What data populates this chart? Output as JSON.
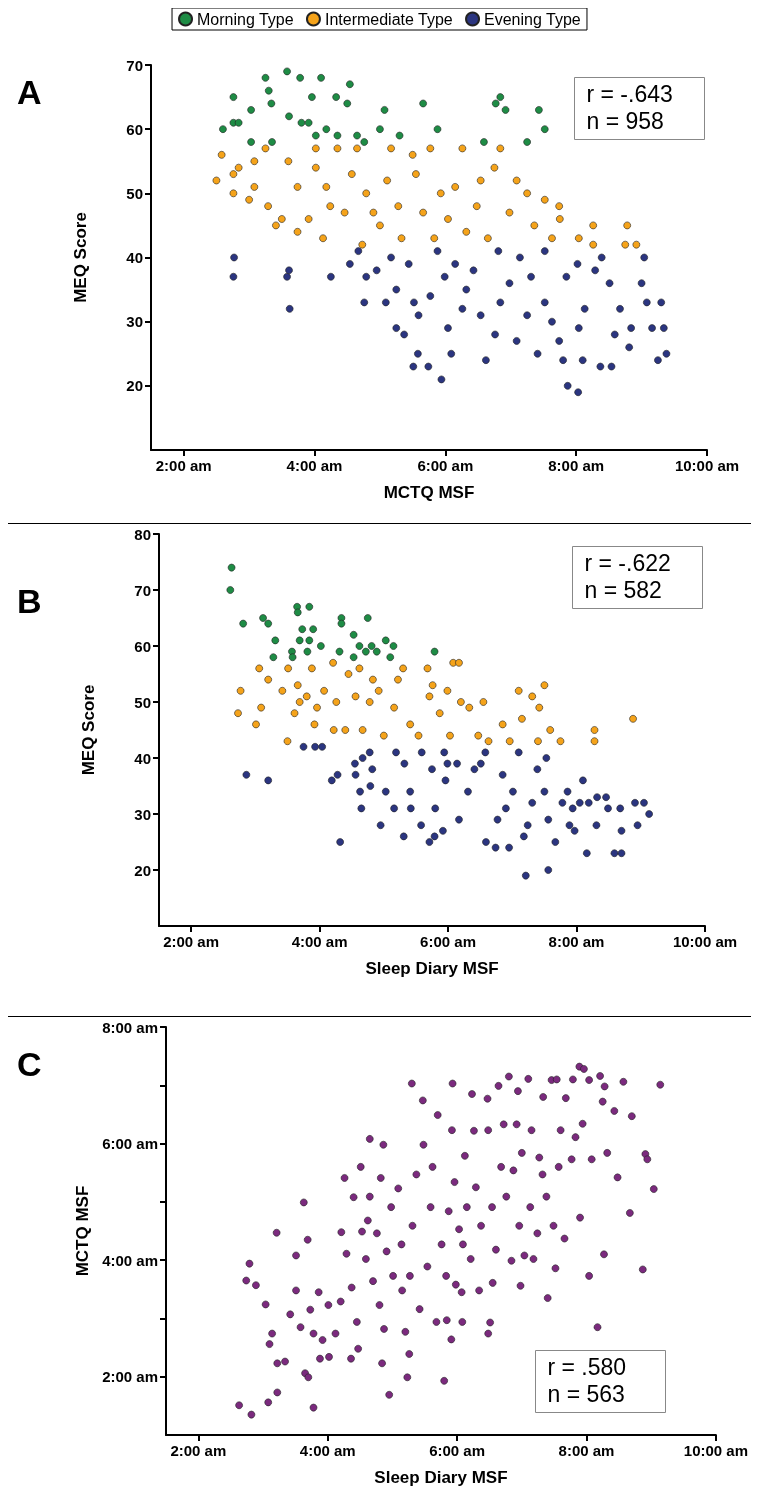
{
  "chart_data": [
    {
      "type": "scatter",
      "title": "A",
      "xlabel": "MCTQ MSF",
      "ylabel": "MEQ Score",
      "legend": "top",
      "marker": "circle",
      "annotations": [
        "r = -.643",
        "n = 958"
      ],
      "xlim": [
        1.5,
        10
      ],
      "xticks": [
        {
          "value": 2,
          "label": "2:00 am"
        },
        {
          "value": 4,
          "label": "4:00 am"
        },
        {
          "value": 6,
          "label": "6:00 am"
        },
        {
          "value": 8,
          "label": "8:00 am"
        },
        {
          "value": 10,
          "label": "10:00 am"
        }
      ],
      "ylim": [
        10,
        70
      ],
      "yticks": [
        20,
        30,
        40,
        50,
        60,
        70
      ],
      "series": [
        {
          "name": "Morning Type",
          "color": "#1e8c45",
          "x": [
            2.6,
            2.76,
            2.76,
            2.84,
            3.03,
            3.03,
            3.25,
            3.3,
            3.34,
            3.35,
            3.58,
            3.61,
            3.78,
            3.8,
            3.91,
            3.96,
            4.1,
            4.02,
            4.18,
            4.33,
            4.35,
            4.5,
            4.54,
            4.65,
            4.76,
            5.0,
            5.07,
            5.3,
            5.66,
            5.88,
            6.59,
            6.77,
            6.84,
            6.92,
            7.25,
            7.43,
            7.52
          ],
          "values": [
            60,
            65,
            61,
            61,
            63,
            58,
            68,
            66,
            64,
            58,
            69,
            62,
            68,
            61,
            61,
            65,
            68,
            59,
            60,
            65,
            59,
            64,
            67,
            59,
            58,
            60,
            63,
            59,
            64,
            60,
            58,
            64,
            65,
            63,
            58,
            63,
            60
          ]
        },
        {
          "name": "Intermediate Type",
          "color": "#f5a31a",
          "x": [
            2.5,
            2.58,
            2.76,
            2.76,
            2.84,
            3.0,
            3.08,
            3.08,
            3.25,
            3.29,
            3.41,
            3.5,
            3.6,
            3.74,
            3.74,
            3.91,
            4.02,
            4.02,
            4.13,
            4.18,
            4.24,
            4.35,
            4.46,
            4.57,
            4.65,
            4.73,
            4.79,
            4.9,
            5.0,
            5.11,
            5.17,
            5.28,
            5.33,
            5.5,
            5.55,
            5.66,
            5.77,
            5.83,
            5.93,
            6.04,
            6.15,
            6.26,
            6.32,
            6.48,
            6.54,
            6.65,
            6.75,
            6.84,
            6.98,
            7.09,
            7.25,
            7.36,
            7.52,
            7.63,
            7.74,
            7.75,
            8.04,
            8.26,
            8.26,
            8.78,
            8.75,
            8.92
          ],
          "values": [
            52,
            56,
            53,
            50,
            54,
            49,
            55,
            51,
            57,
            48,
            45,
            46,
            55,
            51,
            44,
            46,
            57,
            54,
            43,
            51,
            48,
            57,
            47,
            53,
            57,
            42,
            50,
            47,
            45,
            52,
            57,
            48,
            43,
            56,
            53,
            47,
            57,
            43,
            50,
            46,
            51,
            57,
            44,
            48,
            52,
            43,
            54,
            57,
            47,
            52,
            50,
            45,
            49,
            43,
            48,
            46,
            43,
            45,
            42,
            45,
            42,
            42
          ]
        },
        {
          "name": "Evening Type",
          "color": "#2b3580",
          "x": [
            2.77,
            2.76,
            3.58,
            3.61,
            3.62,
            4.25,
            4.54,
            4.67,
            4.76,
            4.79,
            4.95,
            5.09,
            5.17,
            5.25,
            5.25,
            5.37,
            5.44,
            5.52,
            5.58,
            5.51,
            5.59,
            5.74,
            5.77,
            5.88,
            5.94,
            5.99,
            6.04,
            6.09,
            6.15,
            6.26,
            6.32,
            6.43,
            6.54,
            6.62,
            6.76,
            6.81,
            6.84,
            6.98,
            7.09,
            7.14,
            7.25,
            7.31,
            7.41,
            7.52,
            7.52,
            7.63,
            7.74,
            7.8,
            7.85,
            7.87,
            8.02,
            8.03,
            8.04,
            8.1,
            8.13,
            8.29,
            8.37,
            8.39,
            8.54,
            8.51,
            8.59,
            8.67,
            8.84,
            8.81,
            9.0,
            9.04,
            9.08,
            9.25,
            9.3,
            9.38,
            9.34,
            9.16
          ],
          "values": [
            40,
            37,
            37,
            38,
            32,
            37,
            39,
            41,
            33,
            37,
            38,
            33,
            40,
            35,
            29,
            28,
            39,
            33,
            25,
            23,
            31,
            23,
            34,
            41,
            21,
            37,
            29,
            25,
            39,
            32,
            35,
            38,
            31,
            24,
            28,
            41,
            33,
            36,
            27,
            40,
            31,
            37,
            25,
            41,
            33,
            30,
            27,
            24,
            37,
            20,
            39,
            19,
            29,
            24,
            32,
            38,
            23,
            40,
            23,
            36,
            28,
            32,
            29,
            26,
            36,
            40,
            33,
            24,
            33,
            25,
            29,
            29
          ]
        }
      ]
    },
    {
      "type": "scatter",
      "title": "B",
      "xlabel": "Sleep Diary MSF",
      "ylabel": "MEQ Score",
      "marker": "circle",
      "annotations": [
        "r = -.622",
        "n = 582"
      ],
      "xlim": [
        1.5,
        10
      ],
      "xticks": [
        {
          "value": 2,
          "label": "2:00 am"
        },
        {
          "value": 4,
          "label": "4:00 am"
        },
        {
          "value": 6,
          "label": "6:00 am"
        },
        {
          "value": 8,
          "label": "8:00 am"
        },
        {
          "value": 10,
          "label": "10:00 am"
        }
      ],
      "ylim": [
        10,
        80
      ],
      "yticks": [
        20,
        30,
        40,
        50,
        60,
        70,
        80
      ],
      "series": [
        {
          "color": "#1e8c45",
          "x": [
            2.63,
            2.61,
            2.81,
            3.12,
            3.2,
            3.31,
            3.28,
            3.57,
            3.58,
            3.65,
            3.66,
            3.73,
            3.69,
            3.81,
            3.84,
            3.84,
            3.9,
            4.02,
            4.31,
            4.34,
            4.34,
            4.53,
            4.53,
            4.62,
            4.75,
            4.72,
            4.81,
            4.89,
            5.03,
            5.1,
            5.15,
            5.79
          ],
          "values": [
            74,
            70,
            64,
            65,
            64,
            61,
            58,
            59,
            58,
            67,
            66,
            63,
            61,
            59,
            67,
            61,
            63,
            60,
            59,
            65,
            64,
            62,
            58,
            60,
            65,
            59,
            60,
            59,
            61,
            58,
            60,
            59
          ]
        },
        {
          "color": "#f5a31a",
          "x": [
            2.73,
            2.77,
            3.01,
            3.06,
            3.09,
            3.2,
            3.42,
            3.5,
            3.51,
            3.61,
            3.66,
            3.69,
            3.8,
            3.88,
            3.92,
            3.96,
            4.07,
            4.21,
            4.22,
            4.26,
            4.4,
            4.45,
            4.56,
            4.62,
            4.67,
            4.78,
            4.83,
            4.92,
            5.0,
            5.16,
            5.22,
            5.3,
            5.41,
            5.54,
            5.68,
            5.71,
            5.76,
            5.87,
            5.99,
            6.03,
            6.08,
            6.17,
            6.2,
            6.33,
            6.47,
            6.55,
            6.63,
            6.85,
            6.96,
            7.1,
            7.15,
            7.31,
            7.4,
            7.42,
            7.5,
            7.59,
            7.75,
            8.28,
            8.28,
            8.88
          ],
          "values": [
            48,
            52,
            46,
            56,
            49,
            54,
            52,
            43,
            56,
            48,
            53,
            50,
            51,
            56,
            46,
            49,
            52,
            57,
            45,
            50,
            45,
            55,
            51,
            56,
            45,
            50,
            54,
            52,
            44,
            49,
            54,
            56,
            46,
            44,
            56,
            51,
            53,
            48,
            52,
            44,
            57,
            57,
            50,
            49,
            44,
            50,
            43,
            46,
            43,
            52,
            47,
            51,
            43,
            49,
            53,
            45,
            43,
            45,
            43,
            47
          ]
        },
        {
          "color": "#2b3580",
          "x": [
            2.86,
            3.2,
            3.75,
            3.93,
            4.04,
            4.19,
            4.28,
            4.32,
            4.55,
            4.56,
            4.63,
            4.65,
            4.67,
            4.78,
            4.79,
            4.82,
            4.95,
            5.03,
            5.16,
            5.19,
            5.31,
            5.32,
            5.41,
            5.42,
            5.58,
            5.59,
            5.71,
            5.75,
            5.79,
            5.8,
            5.92,
            5.94,
            5.96,
            5.99,
            6.14,
            6.17,
            6.31,
            6.41,
            6.51,
            6.58,
            6.59,
            6.74,
            6.77,
            6.85,
            6.9,
            6.95,
            7.01,
            7.1,
            7.18,
            7.21,
            7.24,
            7.31,
            7.39,
            7.5,
            7.53,
            7.56,
            7.56,
            7.67,
            7.78,
            7.86,
            7.89,
            7.94,
            7.97,
            8.05,
            8.1,
            8.16,
            8.19,
            8.31,
            8.32,
            8.46,
            8.49,
            8.59,
            8.7,
            8.68,
            8.7,
            8.91,
            8.95,
            9.05,
            9.13
          ],
          "values": [
            37,
            36,
            42,
            42,
            42,
            36,
            37,
            25,
            39,
            37,
            34,
            31,
            40,
            41,
            35,
            38,
            28,
            34,
            31,
            41,
            26,
            39,
            34,
            31,
            28,
            41,
            25,
            38,
            26,
            31,
            27,
            41,
            36,
            39,
            39,
            29,
            34,
            38,
            39,
            41,
            25,
            24,
            29,
            37,
            31,
            24,
            34,
            41,
            26,
            19,
            28,
            32,
            38,
            34,
            40,
            20,
            29,
            25,
            32,
            34,
            28,
            31,
            27,
            32,
            36,
            23,
            32,
            28,
            33,
            33,
            31,
            23,
            23,
            31,
            27,
            32,
            28,
            32,
            30
          ]
        }
      ]
    },
    {
      "type": "scatter",
      "title": "C",
      "xlabel": "Sleep Diary MSF",
      "ylabel": "MCTQ MSF",
      "marker": "circle",
      "annotations": [
        "r = .580",
        "n = 563"
      ],
      "xlim": [
        1.5,
        10
      ],
      "xticks": [
        {
          "value": 2,
          "label": "2:00 am"
        },
        {
          "value": 4,
          "label": "4:00 am"
        },
        {
          "value": 6,
          "label": "6:00 am"
        },
        {
          "value": 8,
          "label": "8:00 am"
        },
        {
          "value": 10,
          "label": "10:00 am"
        }
      ],
      "ylim": [
        1,
        8
      ],
      "yticks": [
        {
          "value": 2,
          "label": "2:00 am"
        },
        {
          "value": 3,
          "label": null
        },
        {
          "value": 4,
          "label": "4:00 am"
        },
        {
          "value": 5,
          "label": null
        },
        {
          "value": 6,
          "label": "6:00 am"
        },
        {
          "value": 7,
          "label": null
        },
        {
          "value": 8,
          "label": "8:00 am"
        }
      ],
      "series": [
        {
          "color": "#7b2a7e",
          "x": [
            2.63,
            2.82,
            3.08,
            3.22,
            3.78,
            2.74,
            2.79,
            2.89,
            3.04,
            3.14,
            3.1,
            3.22,
            3.21,
            3.34,
            3.42,
            3.51,
            3.51,
            3.58,
            3.63,
            3.65,
            3.7,
            3.69,
            3.73,
            3.78,
            3.86,
            3.88,
            3.92,
            4.02,
            4.01,
            4.12,
            4.2,
            4.21,
            4.26,
            4.29,
            4.36,
            4.37,
            4.4,
            4.45,
            4.47,
            4.51,
            4.53,
            4.59,
            4.62,
            4.65,
            4.65,
            4.7,
            4.76,
            4.8,
            4.82,
            4.84,
            4.86,
            4.87,
            4.91,
            4.95,
            4.98,
            5.01,
            5.09,
            5.14,
            5.15,
            5.2,
            5.23,
            5.26,
            5.27,
            5.3,
            5.31,
            5.37,
            5.42,
            5.47,
            5.48,
            5.54,
            5.59,
            5.62,
            5.68,
            5.7,
            5.76,
            5.8,
            5.83,
            5.84,
            5.87,
            5.91,
            5.92,
            5.93,
            5.96,
            5.98,
            6.03,
            6.07,
            6.08,
            6.09,
            6.12,
            6.15,
            6.21,
            6.23,
            6.26,
            6.29,
            6.34,
            6.37,
            6.47,
            6.48,
            6.48,
            6.51,
            6.54,
            6.55,
            6.6,
            6.64,
            6.68,
            6.72,
            6.76,
            6.8,
            6.84,
            6.87,
            6.92,
            6.94,
            6.96,
            6.98,
            7.0,
            7.04,
            7.1,
            7.13,
            7.15,
            7.18,
            7.24,
            7.27,
            7.32,
            7.33,
            7.38,
            7.4,
            7.46,
            7.49,
            7.52,
            7.54,
            7.57,
            7.6,
            7.66,
            7.68,
            7.77,
            7.79,
            7.83,
            7.9,
            7.94,
            7.89,
            7.96,
            8.04,
            8.04,
            8.08,
            8.17,
            8.21,
            8.25,
            8.27,
            8.28,
            8.32,
            8.43,
            8.48,
            8.57,
            8.67,
            8.7,
            8.87,
            8.91,
            8.94,
            9.04,
            9.14
          ],
          "values": [
            1.51,
            1.35,
            1.56,
            1.73,
            1.47,
            3.65,
            3.94,
            3.57,
            3.24,
            2.74,
            2.56,
            2.23,
            4.47,
            2.26,
            3.07,
            3.48,
            4.08,
            2.85,
            4.99,
            2.06,
            1.99,
            4.35,
            3.15,
            2.74,
            3.45,
            2.31,
            2.63,
            2.34,
            3.23,
            2.74,
            3.29,
            4.48,
            5.41,
            4.11,
            2.31,
            3.53,
            5.08,
            2.94,
            2.48,
            5.6,
            4.49,
            4.02,
            4.68,
            6.08,
            5.09,
            3.64,
            4.46,
            3.23,
            5.41,
            2.23,
            5.98,
            2.82,
            4.15,
            1.69,
            4.91,
            3.73,
            5.23,
            4.27,
            3.48,
            2.77,
            1.99,
            2.39,
            3.73,
            7.03,
            4.59,
            5.47,
            3.16,
            6.74,
            5.98,
            3.89,
            4.91,
            5.6,
            2.94,
            6.49,
            4.27,
            1.93,
            3.73,
            2.97,
            4.84,
            2.64,
            6.23,
            7.03,
            5.34,
            3.58,
            4.53,
            3.45,
            2.94,
            4.27,
            5.79,
            4.91,
            4.02,
            6.85,
            6.22,
            5.25,
            3.48,
            4.59,
            6.77,
            6.23,
            2.74,
            2.93,
            4.91,
            3.61,
            4.18,
            6.99,
            5.6,
            6.33,
            5.09,
            7.15,
            3.99,
            5.54,
            6.33,
            6.9,
            4.59,
            3.56,
            5.84,
            4.08,
            7.11,
            4.91,
            6.23,
            4.02,
            4.46,
            5.76,
            5.47,
            6.8,
            5.09,
            3.35,
            7.09,
            4.59,
            3.86,
            7.1,
            5.6,
            6.23,
            4.37,
            6.78,
            5.73,
            7.1,
            6.11,
            4.73,
            6.34,
            7.32,
            7.28,
            7.09,
            3.73,
            5.73,
            2.85,
            7.16,
            6.72,
            4.1,
            6.98,
            5.84,
            6.56,
            5.42,
            7.06,
            4.81,
            6.47,
            3.84,
            5.82,
            5.73,
            5.22,
            7.01
          ]
        }
      ]
    }
  ]
}
